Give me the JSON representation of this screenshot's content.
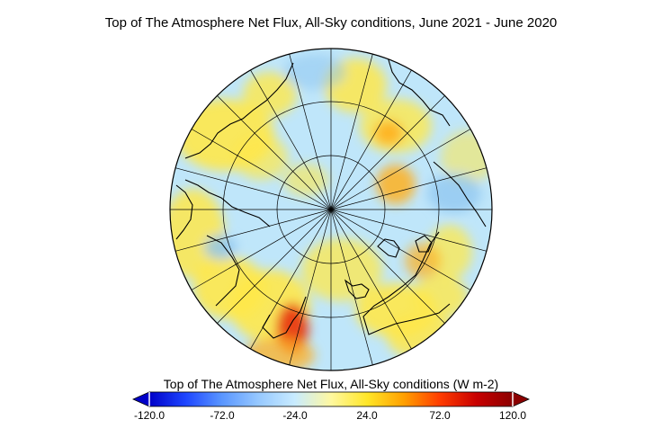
{
  "title": "Top of The Atmosphere Net Flux, All-Sky conditions, June 2021 - June 2020",
  "colorbar": {
    "label": "Top of The Atmosphere Net Flux, All-Sky conditions (W m-2)",
    "min": -120.0,
    "max": 120.0,
    "ticks": [
      "-120.0",
      "-72.0",
      "-24.0",
      "24.0",
      "72.0",
      "120.0"
    ],
    "colors": [
      "#0000c8",
      "#1e46ff",
      "#5a96ff",
      "#96c8ff",
      "#c8ebff",
      "#fff8a0",
      "#ffe628",
      "#ffa000",
      "#ff3c00",
      "#c80000",
      "#8b0000"
    ]
  },
  "map": {
    "projection": "north polar stereographic",
    "background_color": "#bfe6fa",
    "anomaly_colors": {
      "warm": "#ffe84a",
      "warmer": "#ffb020",
      "hot": "#e83a10",
      "cool": "#8cc4f0"
    }
  }
}
